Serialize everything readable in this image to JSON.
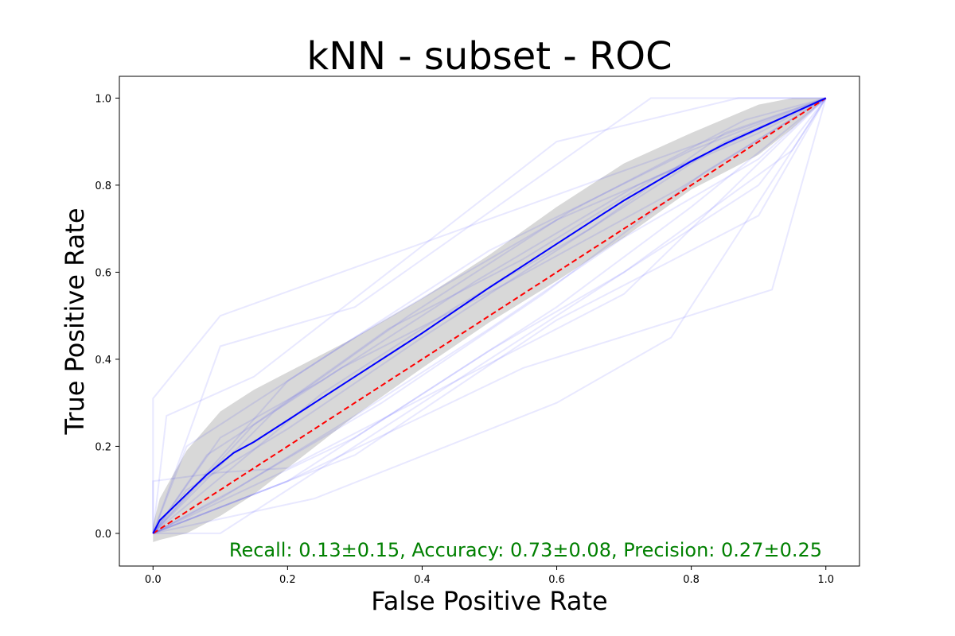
{
  "chart_data": {
    "type": "line",
    "title": "kNN - subset - ROC",
    "xlabel": "False Positive Rate",
    "ylabel": "True Positive Rate",
    "xlim": [
      -0.05,
      1.05
    ],
    "ylim": [
      -0.075,
      1.05
    ],
    "x_ticks": [
      0.0,
      0.2,
      0.4,
      0.6,
      0.8,
      1.0
    ],
    "y_ticks": [
      0.0,
      0.2,
      0.4,
      0.6,
      0.8,
      1.0
    ],
    "x_tick_labels": [
      "0.0",
      "0.2",
      "0.4",
      "0.6",
      "0.8",
      "1.0"
    ],
    "y_tick_labels": [
      "0.0",
      "0.2",
      "0.4",
      "0.6",
      "0.8",
      "1.0"
    ],
    "grid": false,
    "annotation": "Recall: 0.13±0.15, Accuracy: 0.73±0.08, Precision: 0.27±0.25",
    "colors": {
      "mean_line": "#0000ff",
      "band": "#a9a9a9",
      "chance_line": "#ff0000",
      "fold_lines": "#0000ff",
      "annotation": "#008000"
    },
    "mean_curve": {
      "x": [
        0.0,
        0.01,
        0.05,
        0.08,
        0.1,
        0.12,
        0.15,
        0.2,
        0.25,
        0.3,
        0.4,
        0.5,
        0.6,
        0.7,
        0.8,
        0.85,
        0.9,
        0.95,
        1.0
      ],
      "y": [
        0.0,
        0.03,
        0.09,
        0.135,
        0.16,
        0.185,
        0.21,
        0.26,
        0.31,
        0.36,
        0.46,
        0.565,
        0.665,
        0.765,
        0.855,
        0.895,
        0.93,
        0.965,
        1.0
      ]
    },
    "std_band": {
      "x": [
        0.0,
        0.01,
        0.05,
        0.1,
        0.15,
        0.2,
        0.3,
        0.4,
        0.5,
        0.6,
        0.7,
        0.8,
        0.9,
        0.95,
        1.0
      ],
      "upper": [
        0.02,
        0.08,
        0.19,
        0.28,
        0.33,
        0.37,
        0.45,
        0.54,
        0.64,
        0.75,
        0.85,
        0.92,
        0.985,
        1.0,
        1.0
      ],
      "lower": [
        -0.02,
        -0.015,
        0.0,
        0.04,
        0.09,
        0.15,
        0.27,
        0.38,
        0.485,
        0.58,
        0.68,
        0.79,
        0.87,
        0.93,
        1.0
      ]
    },
    "chance_line": {
      "x": [
        0.0,
        1.0
      ],
      "y": [
        0.0,
        1.0
      ]
    },
    "fold_curves": [
      {
        "x": [
          0.0,
          0.0,
          0.1,
          1.0
        ],
        "y": [
          0.0,
          0.31,
          0.5,
          1.0
        ]
      },
      {
        "x": [
          0.0,
          0.1,
          0.3,
          0.74,
          1.0
        ],
        "y": [
          0.0,
          0.43,
          0.52,
          1.0,
          1.0
        ]
      },
      {
        "x": [
          0.0,
          0.1,
          0.6,
          0.9,
          1.0
        ],
        "y": [
          0.0,
          0.0,
          0.5,
          0.8,
          1.0
        ]
      },
      {
        "x": [
          0.0,
          0.2,
          0.55,
          0.92,
          1.0
        ],
        "y": [
          0.0,
          0.12,
          0.38,
          0.56,
          1.0
        ]
      },
      {
        "x": [
          0.0,
          0.3,
          0.6,
          0.9,
          1.0
        ],
        "y": [
          0.0,
          0.18,
          0.49,
          0.73,
          1.0
        ]
      },
      {
        "x": [
          0.0,
          0.2,
          0.5,
          0.8,
          1.0
        ],
        "y": [
          0.0,
          0.35,
          0.65,
          0.88,
          1.0
        ]
      },
      {
        "x": [
          0.0,
          0.05,
          0.3,
          0.6,
          0.9,
          1.0
        ],
        "y": [
          0.0,
          0.2,
          0.45,
          0.72,
          0.92,
          1.0
        ]
      },
      {
        "x": [
          0.0,
          0.24,
          0.6,
          0.77,
          1.0
        ],
        "y": [
          0.0,
          0.08,
          0.3,
          0.45,
          1.0
        ]
      },
      {
        "x": [
          0.0,
          0.02,
          0.15,
          0.6,
          0.87,
          1.0
        ],
        "y": [
          0.0,
          0.27,
          0.36,
          0.9,
          1.0,
          1.0
        ]
      },
      {
        "x": [
          0.0,
          0.0,
          0.1,
          0.2,
          0.7,
          1.0
        ],
        "y": [
          0.0,
          0.12,
          0.14,
          0.15,
          0.55,
          1.0
        ]
      },
      {
        "x": [
          0.0,
          0.2,
          0.4,
          0.6,
          0.8,
          1.0
        ],
        "y": [
          0.0,
          0.12,
          0.32,
          0.52,
          0.75,
          1.0
        ]
      },
      {
        "x": [
          0.0,
          0.15,
          0.35,
          0.55,
          0.75,
          1.0
        ],
        "y": [
          0.0,
          0.25,
          0.47,
          0.63,
          0.82,
          1.0
        ]
      },
      {
        "x": [
          0.0,
          0.1,
          0.3,
          0.5,
          0.7,
          0.9,
          1.0
        ],
        "y": [
          0.0,
          0.08,
          0.27,
          0.47,
          0.68,
          0.86,
          1.0
        ]
      },
      {
        "x": [
          0.0,
          0.25,
          0.45,
          0.65,
          0.85,
          1.0
        ],
        "y": [
          0.0,
          0.32,
          0.52,
          0.7,
          0.9,
          1.0
        ]
      },
      {
        "x": [
          0.0,
          0.08,
          0.28,
          0.52,
          0.78,
          1.0
        ],
        "y": [
          0.0,
          0.18,
          0.38,
          0.57,
          0.79,
          1.0
        ]
      },
      {
        "x": [
          0.0,
          0.12,
          0.34,
          0.58,
          0.82,
          1.0
        ],
        "y": [
          0.0,
          0.1,
          0.3,
          0.55,
          0.83,
          1.0
        ]
      },
      {
        "x": [
          0.0,
          0.05,
          0.2,
          0.4,
          0.65,
          0.85,
          1.0
        ],
        "y": [
          0.0,
          0.1,
          0.24,
          0.45,
          0.7,
          0.92,
          1.0
        ]
      },
      {
        "x": [
          0.0,
          0.18,
          0.38,
          0.62,
          0.88,
          1.0
        ],
        "y": [
          0.0,
          0.28,
          0.5,
          0.74,
          0.95,
          1.0
        ]
      },
      {
        "x": [
          0.0,
          0.3,
          0.5,
          0.7,
          0.95,
          1.0
        ],
        "y": [
          0.0,
          0.22,
          0.42,
          0.6,
          0.88,
          1.0
        ]
      },
      {
        "x": [
          0.0,
          0.1,
          0.25,
          0.48,
          0.72,
          1.0
        ],
        "y": [
          0.0,
          0.22,
          0.35,
          0.58,
          0.8,
          1.0
        ]
      }
    ]
  }
}
